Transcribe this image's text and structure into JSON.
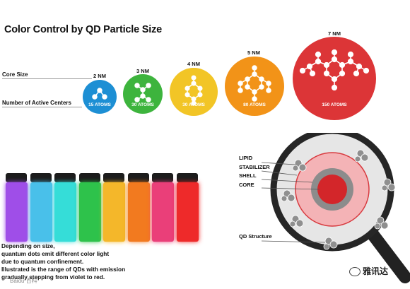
{
  "title": "Color Control by QD Particle Size",
  "row_labels": {
    "core_size": "Core Size",
    "active_centers": "Number of Active Centers"
  },
  "particles": [
    {
      "size": "2 NM",
      "atoms": "15 ATOMS",
      "color": "#1d8fd4"
    },
    {
      "size": "3 NM",
      "atoms": "30 ATOMS",
      "color": "#3db43d"
    },
    {
      "size": "4 NM",
      "atoms": "30 ATOMS",
      "color": "#f2c526"
    },
    {
      "size": "5 NM",
      "atoms": "80 ATOMS",
      "color": "#f29318"
    },
    {
      "size": "7 NM",
      "atoms": "150 ATOMS",
      "color": "#dc3537"
    }
  ],
  "vials": [
    {
      "color": "#9f4ee8"
    },
    {
      "color": "#49c0ea"
    },
    {
      "color": "#35ddd8"
    },
    {
      "color": "#2ec24b"
    },
    {
      "color": "#f4b72a"
    },
    {
      "color": "#f27a1f"
    },
    {
      "color": "#ea3f79"
    },
    {
      "color": "#ee2a2a"
    }
  ],
  "description": [
    "Depending on size,",
    "quantum dots emit different color light",
    "due to quantum confinement.",
    "Illustrated is the range of QDs with emission",
    "gradually stepping from violet to red."
  ],
  "qd_structure": {
    "layers": [
      "LIPID",
      "STABILIZER",
      "SHELL",
      "CORE"
    ],
    "caption": "QD Structure"
  },
  "footer_text": "Baidu 百科",
  "watermark_text": "雅讯达"
}
